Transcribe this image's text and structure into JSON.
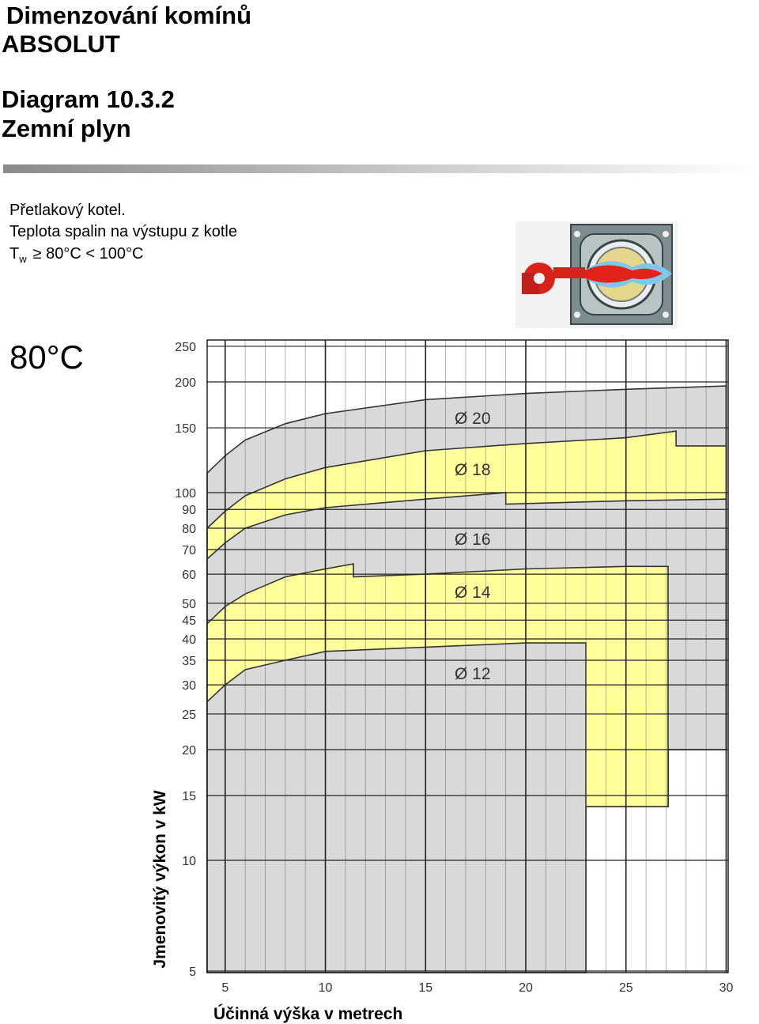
{
  "header": {
    "title_line1": "Dimenzování komínů",
    "title_line2": "ABSOLUT",
    "diagram": "Diagram 10.3.2",
    "fuel": "Zemní plyn"
  },
  "description": {
    "line1": "Přetlakový kotel.",
    "line2": "Teplota spalin na výstupu z kotle",
    "symbol": "T",
    "subscript": "w",
    "condition": "≥ 80°C < 100°C"
  },
  "temperature": "80°C",
  "chart_data": {
    "type": "area",
    "xlabel": "Účinná výška v metrech",
    "ylabel": "Jmenovitý výkon v kW",
    "xlim": [
      4.1,
      30.1
    ],
    "ylim": [
      4.95,
      260
    ],
    "yscale": "log",
    "grid": true,
    "xticks": [
      5,
      10,
      15,
      20,
      25,
      30
    ],
    "yticks": [
      5,
      10,
      15,
      20,
      25,
      30,
      35,
      40,
      45,
      50,
      60,
      70,
      80,
      90,
      100,
      150,
      200,
      250
    ],
    "series": [
      {
        "name": "Ø 20",
        "color": "#d9d9d9",
        "x": [
          4.1,
          5,
          6,
          8,
          10,
          15,
          20,
          25,
          30,
          30,
          27.1,
          27.1,
          23
        ],
        "values": [
          113,
          126,
          139,
          154,
          164,
          179,
          186,
          191,
          195,
          20,
          20,
          14,
          14
        ]
      },
      {
        "name": "Ø 18",
        "color": "#ffff9c",
        "x": [
          4.1,
          5,
          6,
          8,
          10,
          15,
          20,
          25,
          27.5,
          27.5,
          30,
          30,
          27.1,
          27.1,
          23
        ],
        "values": [
          80,
          89,
          98,
          109,
          117,
          130,
          136,
          141,
          147,
          134,
          134,
          20,
          20,
          14,
          14
        ]
      },
      {
        "name": "Ø 16",
        "color": "#d9d9d9",
        "x": [
          4.1,
          5,
          6,
          8,
          10,
          15,
          19,
          19,
          25,
          30,
          30,
          27.1,
          27.1,
          23
        ],
        "values": [
          66,
          73,
          80,
          87,
          91,
          96,
          100,
          93,
          95,
          96,
          20,
          20,
          14,
          14
        ]
      },
      {
        "name": "Ø 14",
        "color": "#ffff9c",
        "x": [
          4.1,
          5,
          6,
          8,
          10,
          11.4,
          11.4,
          15,
          20,
          25,
          27.1,
          27.1,
          23
        ],
        "values": [
          44,
          49,
          53,
          59,
          62,
          64,
          59,
          60,
          62,
          63,
          63,
          14,
          14
        ]
      },
      {
        "name": "Ø 12",
        "color": "#d9d9d9",
        "x": [
          4.1,
          5,
          6,
          8,
          10,
          15,
          20,
          23
        ],
        "values": [
          27,
          30,
          33,
          35,
          37,
          38,
          39,
          39
        ]
      }
    ]
  }
}
